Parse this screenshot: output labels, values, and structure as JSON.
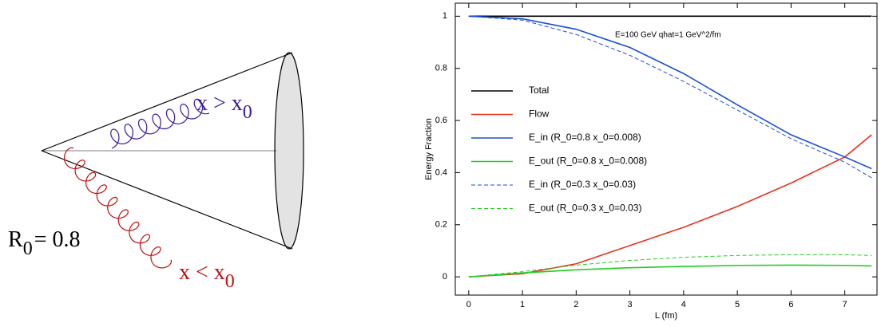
{
  "diagram": {
    "upper_label": {
      "text": "x > x",
      "sub": "0"
    },
    "lower_label": {
      "text": "x < x",
      "sub": "0"
    },
    "cone_label": {
      "text": "R",
      "sub": "0",
      "rest": "= 0.8"
    }
  },
  "chart_data": {
    "type": "line",
    "annotation": "E=100 GeV    qhat=1 GeV^2/fm",
    "x_label": "L (fm)",
    "y_label": "Energy Fraction",
    "xlim": [
      -0.25,
      7.6
    ],
    "ylim": [
      -0.07,
      1.05
    ],
    "xticks": [
      0,
      1,
      2,
      3,
      4,
      5,
      6,
      7
    ],
    "yticks": [
      0,
      0.2,
      0.4,
      0.6,
      0.8,
      1
    ],
    "x": [
      0,
      1,
      2,
      3,
      4,
      5,
      6,
      7,
      7.5
    ],
    "series": [
      {
        "name": "Total",
        "color": "#000000",
        "dashed": false,
        "values": [
          1,
          1,
          1,
          1,
          1,
          1,
          1,
          1,
          1
        ]
      },
      {
        "name": "Flow",
        "color": "#e8321e",
        "dashed": false,
        "values": [
          0,
          0.012,
          0.05,
          0.12,
          0.19,
          0.27,
          0.36,
          0.46,
          0.545
        ]
      },
      {
        "name": "E_in (R_0=0.8  x_0=0.008)",
        "color": "#1a4fd8",
        "dashed": false,
        "values": [
          1,
          0.99,
          0.95,
          0.88,
          0.78,
          0.66,
          0.545,
          0.46,
          0.415
        ]
      },
      {
        "name": "E_out (R_0=0.8  x_0=0.008)",
        "color": "#22cc22",
        "dashed": false,
        "values": [
          0,
          0.015,
          0.027,
          0.035,
          0.04,
          0.044,
          0.045,
          0.044,
          0.042
        ]
      },
      {
        "name": "E_in (R_0=0.3  x_0=0.03)",
        "color": "#1a4fd8",
        "dashed": true,
        "values": [
          1,
          0.985,
          0.93,
          0.85,
          0.75,
          0.64,
          0.53,
          0.44,
          0.38
        ]
      },
      {
        "name": "E_out (R_0=0.3  x_0=0.03)",
        "color": "#22cc22",
        "dashed": true,
        "values": [
          0,
          0.02,
          0.045,
          0.063,
          0.075,
          0.082,
          0.085,
          0.085,
          0.082
        ]
      }
    ]
  }
}
